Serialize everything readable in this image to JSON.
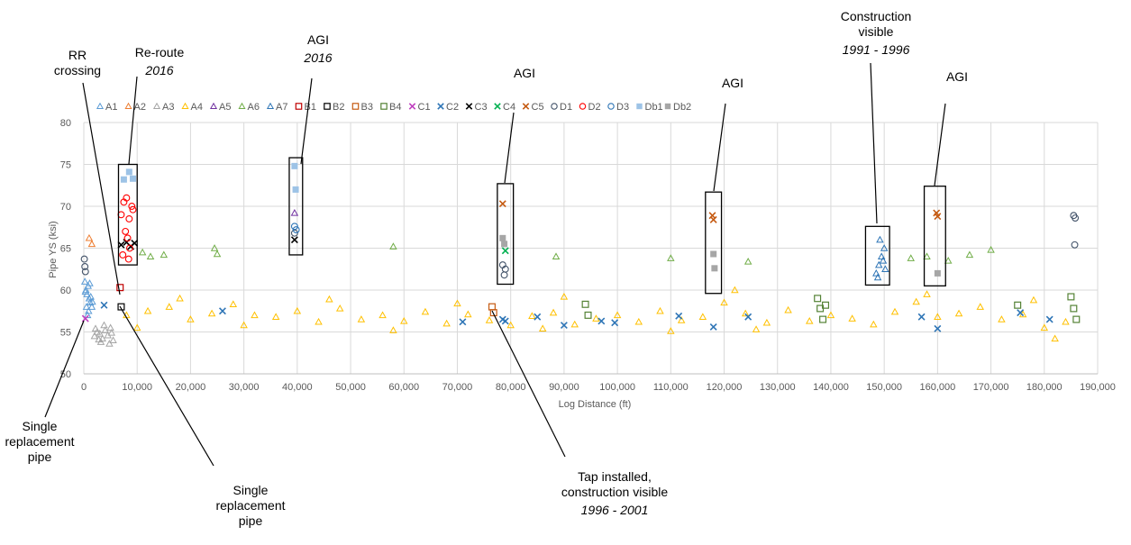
{
  "chart_data": {
    "type": "scatter",
    "xlabel": "Log Distance (ft)",
    "ylabel": "Pipe YS (ksi)",
    "xlim": [
      0,
      190000
    ],
    "ylim": [
      50,
      80
    ],
    "x_ticks": [
      "0",
      "10,000",
      "20,000",
      "30,000",
      "40,000",
      "50,000",
      "60,000",
      "70,000",
      "80,000",
      "90,000",
      "100,000",
      "110,000",
      "120,000",
      "130,000",
      "140,000",
      "150,000",
      "160,000",
      "170,000",
      "180,000",
      "190,000"
    ],
    "y_ticks": [
      "50",
      "55",
      "60",
      "65",
      "70",
      "75",
      "80"
    ],
    "grid": "vertical and horizontal",
    "legend_position": "top",
    "series": [
      {
        "name": "A1",
        "marker": "triangle-open",
        "color": "#5b9bd5",
        "points": [
          [
            200,
            61
          ],
          [
            400,
            60
          ],
          [
            600,
            59.5
          ],
          [
            800,
            60.5
          ],
          [
            1000,
            59
          ],
          [
            1200,
            58.5
          ],
          [
            500,
            58
          ],
          [
            900,
            57.5
          ],
          [
            1500,
            58
          ],
          [
            700,
            57
          ],
          [
            300,
            59.8
          ],
          [
            1100,
            60.8
          ],
          [
            1300,
            59.2
          ],
          [
            1600,
            58.6
          ]
        ]
      },
      {
        "name": "A2",
        "marker": "triangle-open",
        "color": "#ed7d31",
        "points": [
          [
            1000,
            66.2
          ],
          [
            1500,
            65.5
          ]
        ]
      },
      {
        "name": "A3",
        "marker": "triangle-open",
        "color": "#a5a5a5",
        "points": [
          [
            2000,
            54.5
          ],
          [
            2500,
            55
          ],
          [
            3000,
            54.8
          ],
          [
            3500,
            54.2
          ],
          [
            4000,
            55.2
          ],
          [
            4500,
            54.6
          ],
          [
            5000,
            55.5
          ],
          [
            5500,
            54
          ],
          [
            2200,
            55.4
          ],
          [
            3200,
            53.8
          ],
          [
            3800,
            55.8
          ],
          [
            4800,
            53.6
          ],
          [
            2800,
            54.1
          ],
          [
            5200,
            54.9
          ]
        ]
      },
      {
        "name": "A4",
        "marker": "triangle-open",
        "color": "#ffc000",
        "points": [
          [
            8000,
            57
          ],
          [
            12000,
            57.5
          ],
          [
            16000,
            58
          ],
          [
            20000,
            56.5
          ],
          [
            24000,
            57.2
          ],
          [
            28000,
            58.3
          ],
          [
            32000,
            57
          ],
          [
            36000,
            56.8
          ],
          [
            40000,
            57.5
          ],
          [
            44000,
            56.2
          ],
          [
            48000,
            57.8
          ],
          [
            52000,
            56.5
          ],
          [
            56000,
            57
          ],
          [
            60000,
            56.3
          ],
          [
            64000,
            57.4
          ],
          [
            68000,
            56
          ],
          [
            72000,
            57.1
          ],
          [
            76000,
            56.4
          ],
          [
            80000,
            55.8
          ],
          [
            84000,
            56.9
          ],
          [
            88000,
            57.3
          ],
          [
            92000,
            55.9
          ],
          [
            96000,
            56.6
          ],
          [
            100000,
            57
          ],
          [
            104000,
            56.2
          ],
          [
            108000,
            57.5
          ],
          [
            112000,
            56.4
          ],
          [
            116000,
            56.8
          ],
          [
            120000,
            58.5
          ],
          [
            124000,
            57.2
          ],
          [
            128000,
            56.1
          ],
          [
            132000,
            57.6
          ],
          [
            136000,
            56.3
          ],
          [
            140000,
            57
          ],
          [
            144000,
            56.6
          ],
          [
            148000,
            55.9
          ],
          [
            152000,
            57.4
          ],
          [
            156000,
            58.6
          ],
          [
            160000,
            56.8
          ],
          [
            164000,
            57.2
          ],
          [
            168000,
            58
          ],
          [
            172000,
            56.5
          ],
          [
            176000,
            57.1
          ],
          [
            180000,
            55.5
          ],
          [
            184000,
            56.2
          ],
          [
            10000,
            55.5
          ],
          [
            18000,
            59
          ],
          [
            30000,
            55.8
          ],
          [
            46000,
            58.9
          ],
          [
            58000,
            55.2
          ],
          [
            70000,
            58.4
          ],
          [
            86000,
            55.4
          ],
          [
            90000,
            59.2
          ],
          [
            110000,
            55.1
          ],
          [
            122000,
            60
          ],
          [
            126000,
            55.3
          ],
          [
            158000,
            59.5
          ],
          [
            178000,
            58.8
          ],
          [
            182000,
            54.2
          ]
        ]
      },
      {
        "name": "A5",
        "marker": "triangle-open",
        "color": "#7030a0",
        "points": [
          [
            39500,
            69.2
          ]
        ]
      },
      {
        "name": "A6",
        "marker": "triangle-open",
        "color": "#70ad47",
        "points": [
          [
            11000,
            64.5
          ],
          [
            12500,
            64
          ],
          [
            15000,
            64.2
          ],
          [
            24500,
            65
          ],
          [
            25000,
            64.3
          ],
          [
            58000,
            65.2
          ],
          [
            88500,
            64
          ],
          [
            110000,
            63.8
          ],
          [
            124500,
            63.4
          ],
          [
            155000,
            63.8
          ],
          [
            158000,
            64
          ],
          [
            162000,
            63.5
          ],
          [
            166000,
            64.2
          ],
          [
            170000,
            64.8
          ]
        ]
      },
      {
        "name": "A7",
        "marker": "triangle-open",
        "color": "#2e75b6",
        "points": [
          [
            148500,
            62
          ],
          [
            149000,
            63
          ],
          [
            149500,
            64
          ],
          [
            150000,
            65
          ],
          [
            148800,
            61.5
          ],
          [
            149200,
            66
          ],
          [
            149800,
            63.5
          ],
          [
            150200,
            62.5
          ]
        ]
      },
      {
        "name": "B1",
        "marker": "square-open",
        "color": "#c00000",
        "points": [
          [
            6800,
            60.3
          ]
        ]
      },
      {
        "name": "B2",
        "marker": "square-open",
        "color": "#000000",
        "points": [
          [
            7000,
            58
          ]
        ]
      },
      {
        "name": "B3",
        "marker": "square-open",
        "color": "#c55a11",
        "points": [
          [
            76500,
            58
          ],
          [
            76800,
            57.3
          ]
        ]
      },
      {
        "name": "B4",
        "marker": "square-open",
        "color": "#548235",
        "points": [
          [
            94000,
            58.3
          ],
          [
            94500,
            57
          ],
          [
            137500,
            59
          ],
          [
            138000,
            57.8
          ],
          [
            138500,
            56.5
          ],
          [
            139000,
            58.2
          ],
          [
            175000,
            58.2
          ],
          [
            185000,
            59.2
          ],
          [
            185500,
            57.8
          ],
          [
            186000,
            56.5
          ]
        ]
      },
      {
        "name": "C1",
        "marker": "x",
        "color": "#bf3fbf",
        "points": [
          [
            300,
            56.6
          ]
        ]
      },
      {
        "name": "C2",
        "marker": "x",
        "color": "#2e75b6",
        "points": [
          [
            3800,
            58.2
          ],
          [
            26000,
            57.5
          ],
          [
            71000,
            56.2
          ],
          [
            78500,
            56.5
          ],
          [
            79000,
            56.3
          ],
          [
            85000,
            56.8
          ],
          [
            90000,
            55.8
          ],
          [
            97000,
            56.3
          ],
          [
            99500,
            56.1
          ],
          [
            111500,
            56.9
          ],
          [
            118000,
            55.6
          ],
          [
            124500,
            56.8
          ],
          [
            157000,
            56.8
          ],
          [
            160000,
            55.4
          ],
          [
            175500,
            57.3
          ],
          [
            181000,
            56.5
          ]
        ]
      },
      {
        "name": "C3",
        "marker": "x",
        "color": "#000000",
        "points": [
          [
            7000,
            65.4
          ],
          [
            8000,
            65.7
          ],
          [
            8800,
            65.2
          ],
          [
            9500,
            65.6
          ],
          [
            39500,
            66
          ]
        ]
      },
      {
        "name": "C4",
        "marker": "x",
        "color": "#00b050",
        "points": [
          [
            79000,
            64.7
          ]
        ]
      },
      {
        "name": "C5",
        "marker": "x",
        "color": "#c55a11",
        "points": [
          [
            78500,
            70.3
          ],
          [
            117800,
            68.9
          ],
          [
            118000,
            68.4
          ],
          [
            159800,
            69.2
          ],
          [
            160000,
            68.8
          ]
        ]
      },
      {
        "name": "D1",
        "marker": "circle-open",
        "color": "#44546a",
        "points": [
          [
            100,
            63.7
          ],
          [
            200,
            62.8
          ],
          [
            300,
            62.2
          ],
          [
            78500,
            63
          ],
          [
            79000,
            62.5
          ],
          [
            78800,
            61.8
          ],
          [
            39500,
            66.8
          ],
          [
            185500,
            68.9
          ],
          [
            185800,
            68.6
          ],
          [
            185700,
            65.4
          ]
        ]
      },
      {
        "name": "D2",
        "marker": "circle-open",
        "color": "#ff0000",
        "points": [
          [
            7000,
            69
          ],
          [
            7500,
            70.5
          ],
          [
            8000,
            71
          ],
          [
            8500,
            68.5
          ],
          [
            9000,
            70
          ],
          [
            7800,
            67
          ],
          [
            8200,
            66.2
          ],
          [
            8600,
            65
          ],
          [
            7300,
            64.2
          ],
          [
            8400,
            63.7
          ],
          [
            9200,
            69.6
          ]
        ]
      },
      {
        "name": "D3",
        "marker": "circle-open",
        "color": "#2e75b6",
        "points": [
          [
            39500,
            67.6
          ],
          [
            39800,
            67.2
          ]
        ]
      },
      {
        "name": "Db1",
        "marker": "square",
        "color": "#9dc3e6",
        "points": [
          [
            7500,
            73.2
          ],
          [
            8500,
            74.1
          ],
          [
            9200,
            73.3
          ],
          [
            39500,
            74.8
          ],
          [
            39700,
            72
          ]
        ]
      },
      {
        "name": "Db2",
        "marker": "square",
        "color": "#a6a6a6",
        "points": [
          [
            78500,
            66.2
          ],
          [
            78800,
            65.5
          ],
          [
            118000,
            64.3
          ],
          [
            118200,
            62.6
          ],
          [
            160000,
            62
          ]
        ]
      }
    ],
    "boxes": [
      {
        "x": [
          6500,
          10000
        ],
        "y": [
          63,
          75
        ]
      },
      {
        "x": [
          38500,
          41000
        ],
        "y": [
          64.2,
          75.8
        ]
      },
      {
        "x": [
          77500,
          80500
        ],
        "y": [
          60.7,
          72.7
        ]
      },
      {
        "x": [
          116500,
          119500
        ],
        "y": [
          59.6,
          71.7
        ]
      },
      {
        "x": [
          146500,
          151000
        ],
        "y": [
          60.6,
          67.6
        ]
      },
      {
        "x": [
          157500,
          161500
        ],
        "y": [
          60.5,
          72.4
        ]
      }
    ],
    "annotations": [
      {
        "lines": [
          "Re-route"
        ],
        "italic_lines": [
          "2016"
        ]
      },
      {
        "lines": [
          "AGI"
        ],
        "italic_lines": [
          "2016"
        ]
      },
      {
        "lines": [
          "AGI"
        ],
        "italic_lines": []
      },
      {
        "lines": [
          "AGI"
        ],
        "italic_lines": []
      },
      {
        "lines": [
          "Construction",
          "visible"
        ],
        "italic_lines": [
          "1991 - 1996"
        ]
      },
      {
        "lines": [
          "AGI"
        ],
        "italic_lines": []
      },
      {
        "lines": [
          "RR",
          "crossing"
        ],
        "italic_lines": []
      },
      {
        "lines": [
          "Single",
          "replacement",
          "pipe"
        ],
        "italic_lines": []
      },
      {
        "lines": [
          "Single",
          "replacement",
          "pipe"
        ],
        "italic_lines": []
      },
      {
        "lines": [
          "Tap installed,",
          "construction visible"
        ],
        "italic_lines": [
          "1996 - 2001"
        ]
      }
    ]
  }
}
